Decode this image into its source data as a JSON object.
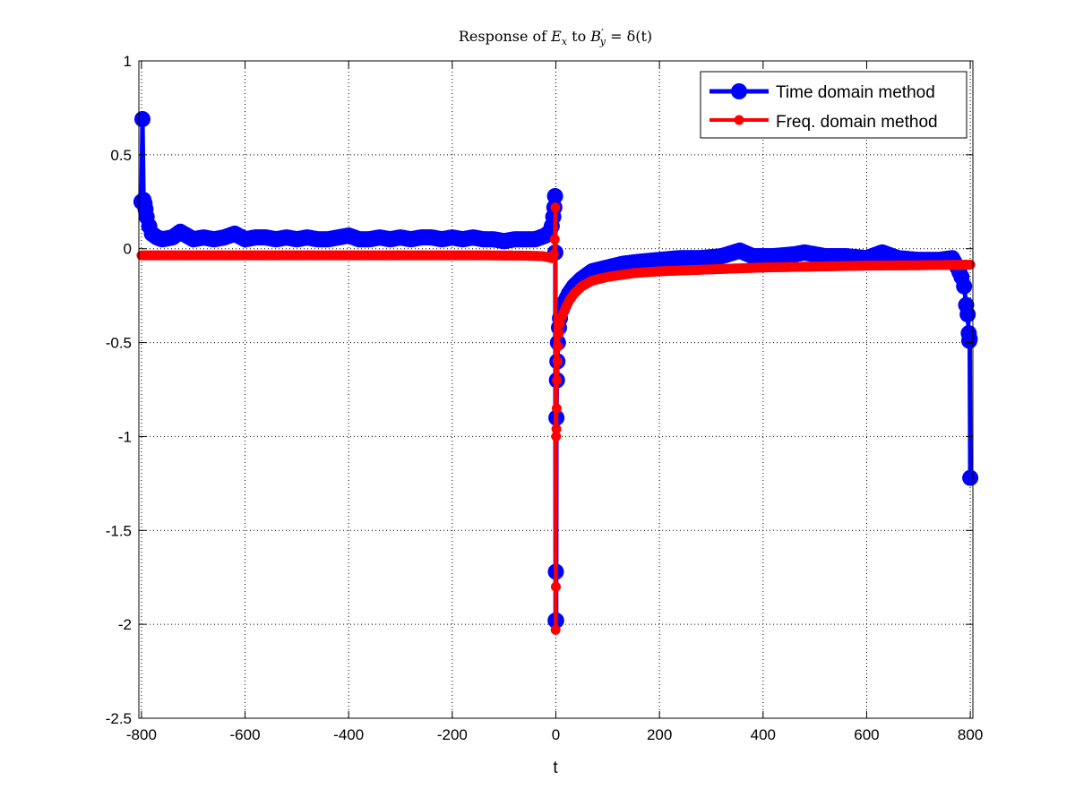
{
  "chart_data": {
    "type": "line",
    "title": {
      "prefix": "Response of ",
      "e_sym": "E",
      "e_sub": "x",
      "middle": " to ",
      "b_sym": "B",
      "b_prime": "′",
      "b_sub": "y",
      "suffix": " = δ(t)"
    },
    "xlabel": "t",
    "ylabel": "",
    "xlim": [
      -805,
      805
    ],
    "ylim": [
      -2.5,
      1
    ],
    "x_ticks": [
      -800,
      -600,
      -400,
      -200,
      0,
      200,
      400,
      600,
      800
    ],
    "x_tick_labels": [
      "-800",
      "-600",
      "-400",
      "-200",
      "0",
      "200",
      "400",
      "600",
      "800"
    ],
    "y_ticks": [
      1,
      0.5,
      0,
      -0.5,
      -1,
      -1.5,
      -2,
      -2.5
    ],
    "y_tick_labels": [
      "1",
      "0.5",
      "0",
      "-0.5",
      "-1",
      "-1.5",
      "-2",
      "-2.5"
    ],
    "grid": true,
    "legend_position": "top-right",
    "series": [
      {
        "name": "Time domain method",
        "color": "#0000ff",
        "marker": "large-circle",
        "points": [
          [
            -800,
            0.25
          ],
          [
            -798,
            0.69
          ],
          [
            -796,
            0.26
          ],
          [
            -794,
            0.24
          ],
          [
            -792,
            0.21
          ],
          [
            -790,
            0.17
          ],
          [
            -785,
            0.12
          ],
          [
            -780,
            0.08
          ],
          [
            -770,
            0.06
          ],
          [
            -760,
            0.05
          ],
          [
            -740,
            0.06
          ],
          [
            -725,
            0.09
          ],
          [
            -700,
            0.05
          ],
          [
            -680,
            0.06
          ],
          [
            -660,
            0.05
          ],
          [
            -640,
            0.06
          ],
          [
            -620,
            0.08
          ],
          [
            -600,
            0.05
          ],
          [
            -580,
            0.06
          ],
          [
            -560,
            0.06
          ],
          [
            -540,
            0.05
          ],
          [
            -520,
            0.06
          ],
          [
            -500,
            0.05
          ],
          [
            -480,
            0.06
          ],
          [
            -460,
            0.05
          ],
          [
            -440,
            0.05
          ],
          [
            -420,
            0.06
          ],
          [
            -400,
            0.07
          ],
          [
            -380,
            0.05
          ],
          [
            -360,
            0.05
          ],
          [
            -340,
            0.06
          ],
          [
            -320,
            0.05
          ],
          [
            -300,
            0.06
          ],
          [
            -280,
            0.05
          ],
          [
            -260,
            0.06
          ],
          [
            -240,
            0.06
          ],
          [
            -220,
            0.05
          ],
          [
            -200,
            0.06
          ],
          [
            -180,
            0.05
          ],
          [
            -160,
            0.06
          ],
          [
            -140,
            0.05
          ],
          [
            -120,
            0.05
          ],
          [
            -100,
            0.04
          ],
          [
            -80,
            0.05
          ],
          [
            -60,
            0.05
          ],
          [
            -40,
            0.05
          ],
          [
            -30,
            0.06
          ],
          [
            -20,
            0.07
          ],
          [
            -12,
            0.09
          ],
          [
            -8,
            0.12
          ],
          [
            -5,
            0.17
          ],
          [
            -3,
            0.22
          ],
          [
            -1.5,
            0.28
          ],
          [
            -1,
            -0.02
          ],
          [
            -0.5,
            -1.98
          ],
          [
            0,
            -1.72
          ],
          [
            0.5,
            -1.98
          ],
          [
            1,
            -0.9
          ],
          [
            2,
            -0.7
          ],
          [
            3,
            -0.6
          ],
          [
            4,
            -0.5
          ],
          [
            6,
            -0.42
          ],
          [
            8,
            -0.37
          ],
          [
            12,
            -0.32
          ],
          [
            18,
            -0.28
          ],
          [
            25,
            -0.24
          ],
          [
            35,
            -0.2
          ],
          [
            50,
            -0.16
          ],
          [
            70,
            -0.12
          ],
          [
            100,
            -0.1
          ],
          [
            130,
            -0.08
          ],
          [
            160,
            -0.07
          ],
          [
            200,
            -0.06
          ],
          [
            240,
            -0.05
          ],
          [
            280,
            -0.05
          ],
          [
            320,
            -0.04
          ],
          [
            355,
            -0.01
          ],
          [
            380,
            -0.04
          ],
          [
            420,
            -0.04
          ],
          [
            460,
            -0.03
          ],
          [
            480,
            -0.02
          ],
          [
            520,
            -0.04
          ],
          [
            560,
            -0.04
          ],
          [
            600,
            -0.05
          ],
          [
            630,
            -0.02
          ],
          [
            660,
            -0.05
          ],
          [
            700,
            -0.06
          ],
          [
            740,
            -0.06
          ],
          [
            765,
            -0.05
          ],
          [
            775,
            -0.1
          ],
          [
            783,
            -0.15
          ],
          [
            788,
            -0.2
          ],
          [
            792,
            -0.3
          ],
          [
            795,
            -0.35
          ],
          [
            797,
            -0.45
          ],
          [
            798,
            -0.49
          ],
          [
            799,
            -0.48
          ],
          [
            800,
            -1.22
          ]
        ]
      },
      {
        "name": "Freq. domain method",
        "color": "#ff0000",
        "marker": "small-circle",
        "points": [
          [
            -800,
            -0.035
          ],
          [
            -750,
            -0.035
          ],
          [
            -700,
            -0.035
          ],
          [
            -650,
            -0.035
          ],
          [
            -600,
            -0.035
          ],
          [
            -550,
            -0.035
          ],
          [
            -500,
            -0.035
          ],
          [
            -450,
            -0.035
          ],
          [
            -400,
            -0.035
          ],
          [
            -350,
            -0.035
          ],
          [
            -300,
            -0.035
          ],
          [
            -250,
            -0.035
          ],
          [
            -200,
            -0.035
          ],
          [
            -150,
            -0.035
          ],
          [
            -100,
            -0.036
          ],
          [
            -60,
            -0.037
          ],
          [
            -40,
            -0.038
          ],
          [
            -25,
            -0.04
          ],
          [
            -15,
            -0.045
          ],
          [
            -8,
            -0.05
          ],
          [
            -4,
            -0.03
          ],
          [
            -2,
            0.05
          ],
          [
            -1,
            0.22
          ],
          [
            -0.5,
            -2.03
          ],
          [
            0,
            -1.8
          ],
          [
            0.5,
            -1.0
          ],
          [
            1,
            -0.96
          ],
          [
            1.5,
            -0.85
          ],
          [
            2,
            -0.7
          ],
          [
            3,
            -0.6
          ],
          [
            4,
            -0.52
          ],
          [
            6,
            -0.45
          ],
          [
            8,
            -0.4
          ],
          [
            12,
            -0.36
          ],
          [
            18,
            -0.32
          ],
          [
            25,
            -0.28
          ],
          [
            35,
            -0.24
          ],
          [
            50,
            -0.2
          ],
          [
            70,
            -0.17
          ],
          [
            100,
            -0.15
          ],
          [
            150,
            -0.13
          ],
          [
            200,
            -0.12
          ],
          [
            250,
            -0.115
          ],
          [
            300,
            -0.11
          ],
          [
            400,
            -0.1
          ],
          [
            500,
            -0.095
          ],
          [
            600,
            -0.09
          ],
          [
            700,
            -0.088
          ],
          [
            800,
            -0.085
          ]
        ]
      }
    ]
  }
}
